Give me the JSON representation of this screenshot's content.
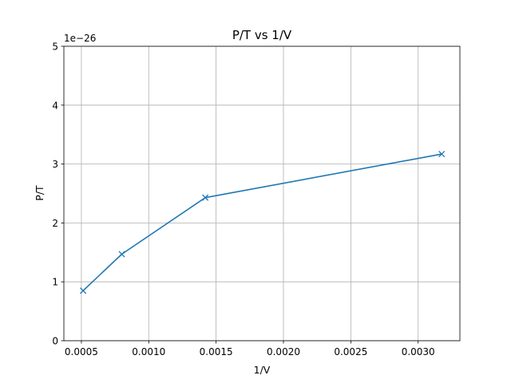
{
  "chart_data": {
    "type": "line",
    "title": "P/T vs 1/V",
    "xlabel": "1/V",
    "ylabel": "P/T",
    "y_offset_label": "1e−26",
    "grid": true,
    "xlim": [
      0.00037,
      0.00331
    ],
    "ylim": [
      0,
      5
    ],
    "x_ticks": [
      0.0005,
      0.001,
      0.0015,
      0.002,
      0.0025,
      0.003
    ],
    "x_tick_labels": [
      "0.0005",
      "0.0010",
      "0.0015",
      "0.0020",
      "0.0025",
      "0.0030"
    ],
    "y_ticks": [
      0,
      1,
      2,
      3,
      4,
      5
    ],
    "y_tick_labels": [
      "0",
      "1",
      "2",
      "3",
      "4",
      "5"
    ],
    "series": [
      {
        "color": "#1f77b4",
        "marker": "x",
        "x": [
          0.000513,
          0.0008,
          0.00142,
          0.003175
        ],
        "y": [
          0.85,
          1.47,
          2.43,
          3.17
        ]
      }
    ]
  }
}
